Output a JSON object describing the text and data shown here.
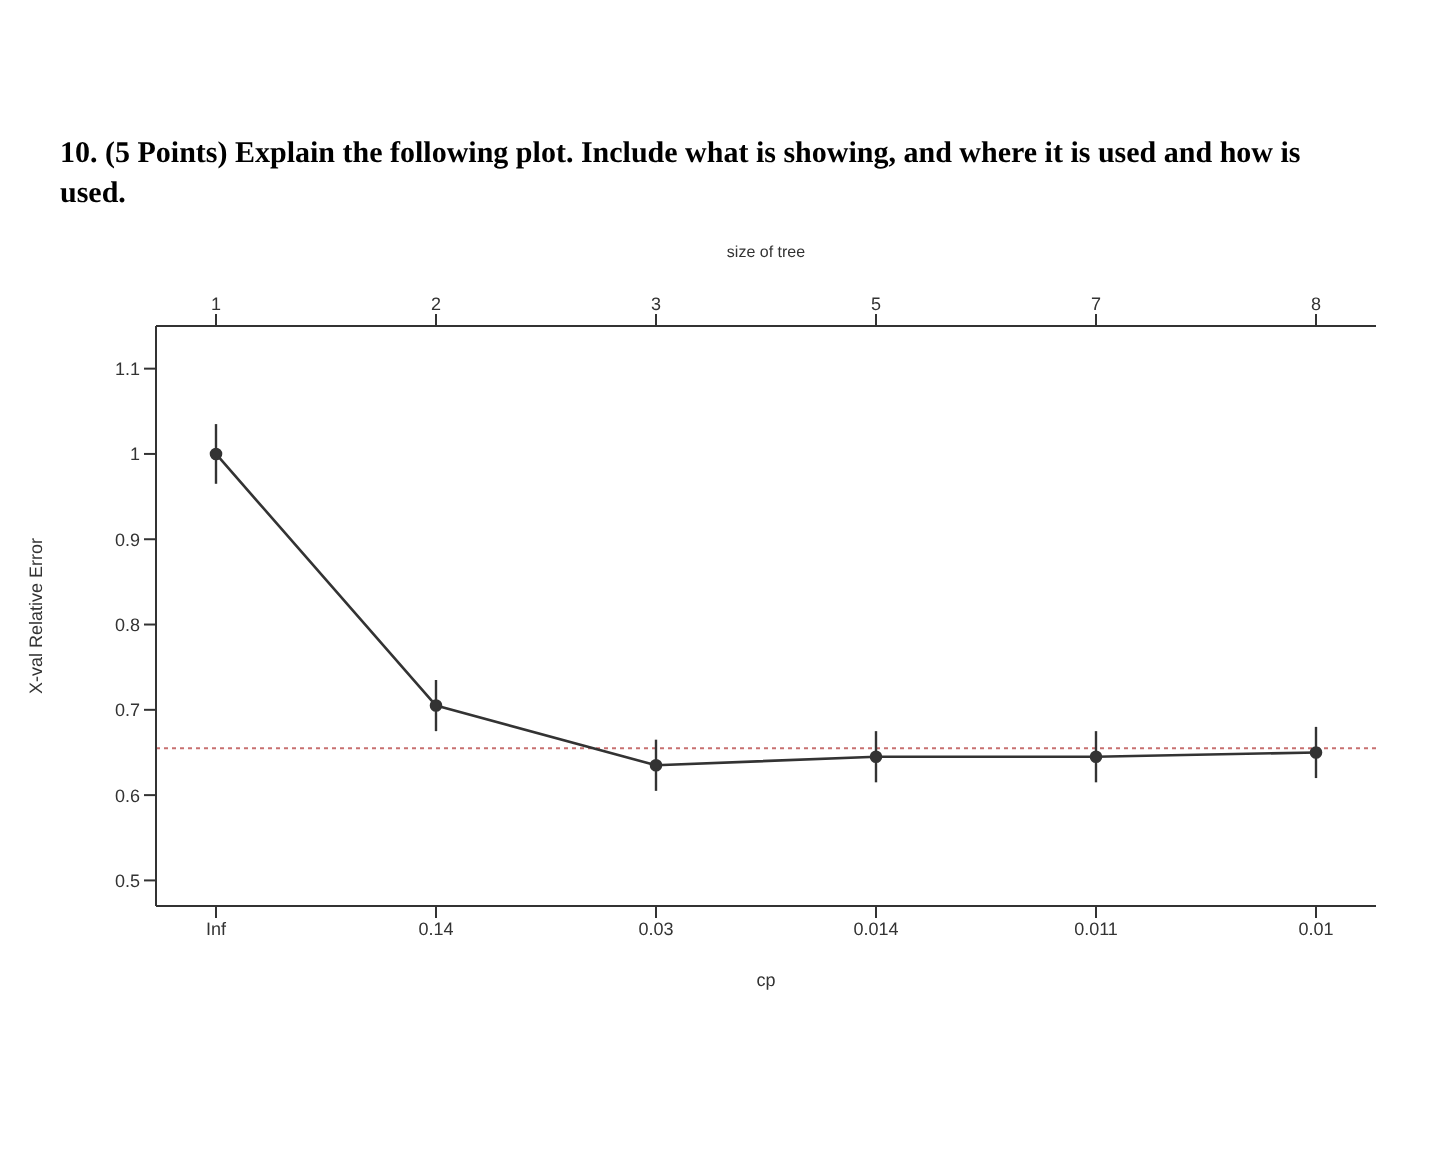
{
  "chart_data": {
    "type": "line",
    "title": "10. (5 Points) Explain the following plot. Include what is showing, and where it is used and how is used.",
    "xlabel": "cp",
    "ylabel": "X-val Relative Error",
    "x2label": "size of tree",
    "categories": [
      "Inf",
      "0.14",
      "0.03",
      "0.014",
      "0.011",
      "0.01"
    ],
    "annotations": [
      "1",
      "2",
      "3",
      "5",
      "7",
      "8"
    ],
    "ylim": [
      0.47,
      1.15
    ],
    "yticks": [
      0.5,
      0.6,
      0.7,
      0.8,
      0.9,
      1.0,
      1.1
    ],
    "series": [
      {
        "color": "#333333",
        "values": [
          1.0,
          0.705,
          0.635,
          0.645,
          0.645,
          0.65
        ],
        "errors": [
          0.035,
          0.03,
          0.03,
          0.03,
          0.03,
          0.03
        ]
      }
    ],
    "ref_lines": [
      {
        "axis": "y",
        "value": 0.655,
        "color": "#c87070",
        "line_style": "dotted"
      }
    ],
    "marker": "circle",
    "grid": false,
    "legend": false
  }
}
